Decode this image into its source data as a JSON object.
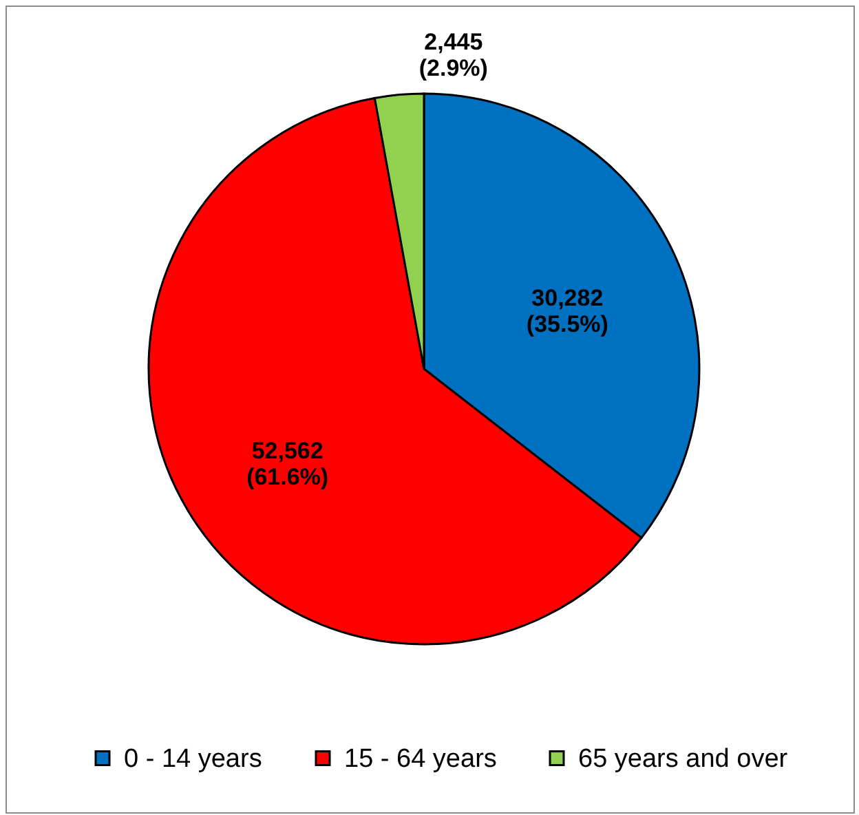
{
  "chart_data": {
    "type": "pie",
    "categories": [
      "0 - 14 years",
      "15 - 64 years",
      "65 years and over"
    ],
    "values": [
      30282,
      52562,
      2445
    ],
    "colors": [
      "#0070c0",
      "#ff0000",
      "#92d050"
    ],
    "value_labels": [
      "30,282\n(35.5%)",
      "52,562\n(61.6%)",
      "2,445\n(2.9%)"
    ],
    "legend": "bottom"
  }
}
